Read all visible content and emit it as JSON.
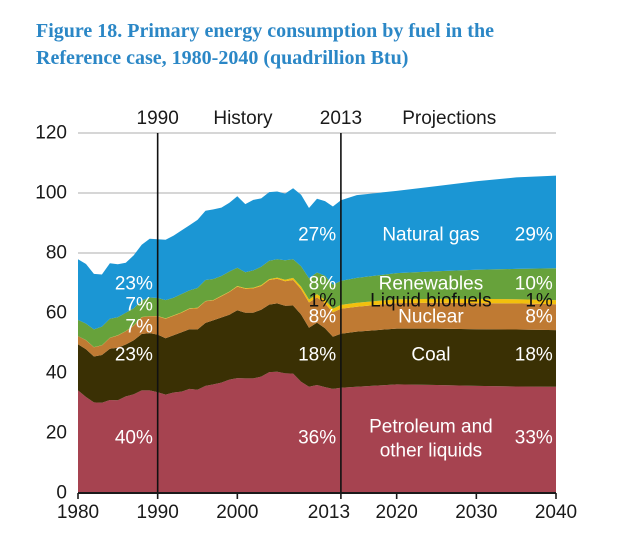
{
  "title": {
    "line1": "Figure 18. Primary energy consumption by fuel in the",
    "line2": "Reference case, 1980-2040 (quadrillion Btu)",
    "color": "#2b87c6"
  },
  "chart_data": {
    "type": "area",
    "stacked": true,
    "title": "Primary energy consumption by fuel, Reference case, 1980-2040",
    "unit": "quadrillion Btu",
    "xlim": [
      1980,
      2040
    ],
    "ylim": [
      0,
      120
    ],
    "yticks": [
      0,
      20,
      40,
      60,
      80,
      100,
      120
    ],
    "xticks": [
      1980,
      1990,
      2000,
      2013,
      2020,
      2030,
      2040
    ],
    "grid": "horizontal, 20-unit intervals, light gray",
    "legend_position": "labels drawn inside areas",
    "era_lines": [
      1990,
      2013
    ],
    "era_labels": [
      {
        "text": "1990",
        "x": 1990
      },
      {
        "text": "History",
        "x": 2000.7
      },
      {
        "text": "2013",
        "x": 2013
      },
      {
        "text": "Projections",
        "x": 2026.6
      }
    ],
    "years": [
      1980,
      1981,
      1982,
      1983,
      1984,
      1985,
      1986,
      1987,
      1988,
      1989,
      1990,
      1991,
      1992,
      1993,
      1994,
      1995,
      1996,
      1997,
      1998,
      1999,
      2000,
      2001,
      2002,
      2003,
      2004,
      2005,
      2006,
      2007,
      2008,
      2009,
      2010,
      2011,
      2012,
      2013,
      2015,
      2020,
      2025,
      2030,
      2035,
      2040
    ],
    "series": [
      {
        "name": "Petroleum and other liquids",
        "color": "#a64350",
        "values": [
          34.2,
          32.0,
          30.2,
          30.1,
          31.0,
          30.9,
          32.2,
          32.9,
          34.2,
          34.2,
          33.6,
          32.8,
          33.5,
          33.8,
          34.7,
          34.4,
          35.7,
          36.2,
          36.8,
          37.8,
          38.3,
          38.2,
          38.2,
          38.8,
          40.3,
          40.4,
          39.9,
          39.8,
          37.1,
          35.4,
          36.0,
          35.3,
          34.7,
          35.1,
          35.4,
          36.2,
          36.0,
          35.7,
          35.5,
          35.4
        ]
      },
      {
        "name": "Coal",
        "color": "#3a3004",
        "values": [
          15.4,
          15.9,
          15.3,
          15.9,
          17.1,
          17.5,
          17.3,
          18.0,
          18.8,
          19.1,
          19.2,
          18.8,
          19.1,
          19.8,
          19.9,
          20.1,
          21.0,
          21.4,
          21.7,
          21.6,
          22.6,
          21.9,
          21.9,
          22.3,
          22.5,
          22.8,
          22.5,
          22.7,
          22.4,
          19.7,
          20.8,
          19.6,
          17.4,
          18.0,
          18.4,
          18.6,
          18.8,
          18.9,
          19.0,
          18.9
        ]
      },
      {
        "name": "Nuclear",
        "color": "#bf7a33",
        "values": [
          2.7,
          3.0,
          3.1,
          3.2,
          3.6,
          4.1,
          4.4,
          4.9,
          5.6,
          5.6,
          6.1,
          6.5,
          6.5,
          6.5,
          6.8,
          7.1,
          7.2,
          6.6,
          7.1,
          7.6,
          7.9,
          8.0,
          8.1,
          7.9,
          8.2,
          8.2,
          8.2,
          8.5,
          8.4,
          8.4,
          8.4,
          8.3,
          8.1,
          8.3,
          8.3,
          8.5,
          8.6,
          8.7,
          8.7,
          8.6
        ]
      },
      {
        "name": "Liquid biofuels",
        "color": "#f2c00d",
        "values": [
          0.0,
          0.05,
          0.05,
          0.05,
          0.06,
          0.06,
          0.07,
          0.08,
          0.08,
          0.08,
          0.1,
          0.1,
          0.1,
          0.12,
          0.13,
          0.15,
          0.1,
          0.12,
          0.14,
          0.14,
          0.2,
          0.2,
          0.2,
          0.3,
          0.3,
          0.4,
          0.5,
          0.7,
          0.9,
          1.0,
          1.1,
          1.2,
          1.2,
          1.3,
          1.3,
          1.3,
          1.3,
          1.4,
          1.4,
          1.4
        ]
      },
      {
        "name": "Renewables",
        "color": "#67a23b",
        "values": [
          5.4,
          5.5,
          5.9,
          6.2,
          6.3,
          6.0,
          6.1,
          5.7,
          5.5,
          6.2,
          6.0,
          6.1,
          5.9,
          6.1,
          6.0,
          6.6,
          7.0,
          7.0,
          6.6,
          6.7,
          6.1,
          5.3,
          5.8,
          6.1,
          6.1,
          6.1,
          6.5,
          6.2,
          6.8,
          7.1,
          7.2,
          8.0,
          8.0,
          8.0,
          8.3,
          8.7,
          9.2,
          9.7,
          10.1,
          10.6
        ]
      },
      {
        "name": "Natural gas",
        "color": "#1b96d4",
        "values": [
          20.2,
          19.9,
          18.5,
          17.4,
          18.5,
          17.7,
          16.7,
          17.7,
          18.6,
          19.6,
          19.6,
          20.1,
          20.7,
          21.2,
          21.7,
          22.7,
          23.1,
          23.2,
          22.8,
          22.9,
          23.8,
          22.7,
          23.5,
          22.8,
          22.9,
          22.6,
          22.2,
          23.7,
          23.8,
          23.4,
          24.6,
          24.9,
          26.1,
          26.9,
          27.6,
          27.4,
          28.4,
          29.5,
          30.5,
          30.9
        ]
      }
    ],
    "annotations": [
      {
        "text": "23%",
        "x": 1989.4,
        "y": 69.7,
        "anchor": "end",
        "color": "#ffffff"
      },
      {
        "text": "7%",
        "x": 1989.4,
        "y": 62.7,
        "anchor": "end",
        "color": "#ffffff"
      },
      {
        "text": "7%",
        "x": 1989.4,
        "y": 55.3,
        "anchor": "end",
        "color": "#ffffff"
      },
      {
        "text": "23%",
        "x": 1989.4,
        "y": 46.0,
        "anchor": "end",
        "color": "#ffffff"
      },
      {
        "text": "40%",
        "x": 1989.4,
        "y": 18.3,
        "anchor": "end",
        "color": "#ffffff"
      },
      {
        "text": "27%",
        "x": 2012.4,
        "y": 86.0,
        "anchor": "end",
        "color": "#ffffff"
      },
      {
        "text": "8%",
        "x": 2012.4,
        "y": 69.7,
        "anchor": "end",
        "color": "#ffffff"
      },
      {
        "text": "1%",
        "x": 2012.4,
        "y": 64.0,
        "anchor": "end",
        "color": "#111111"
      },
      {
        "text": "8%",
        "x": 2012.4,
        "y": 58.7,
        "anchor": "end",
        "color": "#ffffff"
      },
      {
        "text": "18%",
        "x": 2012.4,
        "y": 46.0,
        "anchor": "end",
        "color": "#ffffff"
      },
      {
        "text": "36%",
        "x": 2012.4,
        "y": 18.3,
        "anchor": "end",
        "color": "#ffffff"
      },
      {
        "text": "Natural gas",
        "x": 2024.3,
        "y": 86.0,
        "anchor": "middle",
        "color": "#ffffff"
      },
      {
        "text": "Renewables",
        "x": 2024.3,
        "y": 69.7,
        "anchor": "middle",
        "color": "#ffffff"
      },
      {
        "text": "Liquid biofuels",
        "x": 2024.3,
        "y": 64.0,
        "anchor": "middle",
        "color": "#111111"
      },
      {
        "text": "Nuclear",
        "x": 2024.3,
        "y": 58.7,
        "anchor": "middle",
        "color": "#ffffff"
      },
      {
        "text": "Coal",
        "x": 2024.3,
        "y": 46.0,
        "anchor": "middle",
        "color": "#ffffff"
      },
      {
        "text": "Petroleum and",
        "x": 2024.3,
        "y": 22.0,
        "anchor": "middle",
        "color": "#ffffff"
      },
      {
        "text": "other liquids",
        "x": 2024.3,
        "y": 14.0,
        "anchor": "middle",
        "color": "#ffffff"
      },
      {
        "text": "29%",
        "x": 2039.6,
        "y": 86.0,
        "anchor": "end",
        "color": "#ffffff"
      },
      {
        "text": "10%",
        "x": 2039.6,
        "y": 69.7,
        "anchor": "end",
        "color": "#ffffff"
      },
      {
        "text": "1%",
        "x": 2039.6,
        "y": 64.0,
        "anchor": "end",
        "color": "#111111"
      },
      {
        "text": "8%",
        "x": 2039.6,
        "y": 58.7,
        "anchor": "end",
        "color": "#ffffff"
      },
      {
        "text": "18%",
        "x": 2039.6,
        "y": 46.0,
        "anchor": "end",
        "color": "#ffffff"
      },
      {
        "text": "33%",
        "x": 2039.6,
        "y": 18.3,
        "anchor": "end",
        "color": "#ffffff"
      }
    ],
    "colors": {
      "grid": "#bdbdbd",
      "axis": "#1a1a1a",
      "era_line": "#111111",
      "tick_text": "#1a1a1a"
    }
  }
}
